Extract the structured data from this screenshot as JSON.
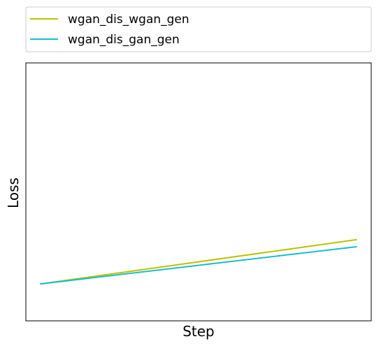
{
  "chart_data": {
    "type": "line",
    "title": "",
    "xlabel": "Step",
    "ylabel": "Loss",
    "x_ticks_visible": false,
    "y_ticks_visible": false,
    "grid": false,
    "legend_placement": "above-plot-left",
    "xlim": [
      -0.045,
      1.045
    ],
    "ylim": [
      -0.28,
      1.0
    ],
    "series": [
      {
        "name": "wgan_dis_wgan_gen",
        "color": "#bfbf00",
        "x": [
          0,
          1
        ],
        "y": [
          -0.097,
          0.123
        ]
      },
      {
        "name": "wgan_dis_gan_gen",
        "color": "#17becf",
        "x": [
          0,
          1
        ],
        "y": [
          -0.097,
          0.088
        ]
      }
    ]
  }
}
